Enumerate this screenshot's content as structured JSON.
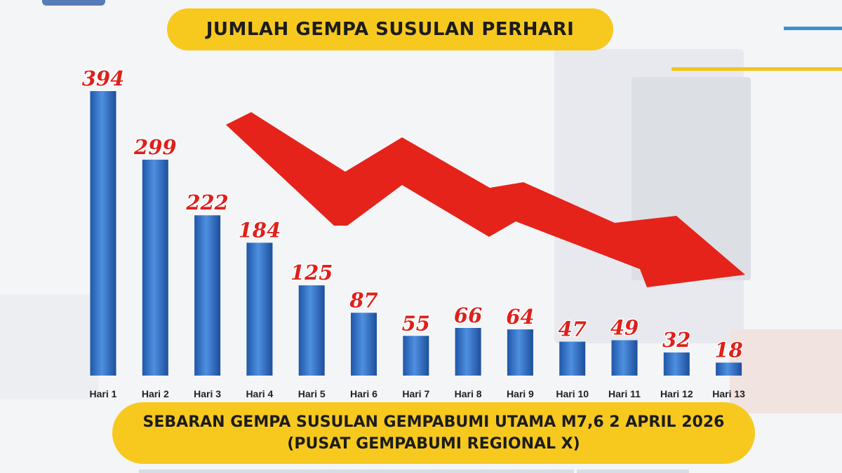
{
  "header": {
    "title": "JUMLAH GEMPA SUSULAN PERHARI"
  },
  "footer": {
    "line1": "SEBARAN GEMPA SUSULAN GEMPABUMI UTAMA M7,6 2 APRIL 2026",
    "line2": "(PUSAT GEMPABUMI REGIONAL X)"
  },
  "colors": {
    "bar": "#2f6fc4",
    "bar_light": "#6ea3e6",
    "value_label": "#e0201b",
    "arrow": "#e5231b",
    "pill": "#f7c91f"
  },
  "chart_data": {
    "type": "bar",
    "title": "JUMLAH GEMPA SUSULAN PERHARI",
    "categories": [
      "Hari 1",
      "Hari 2",
      "Hari 3",
      "Hari 4",
      "Hari 5",
      "Hari 6",
      "Hari 7",
      "Hari 8",
      "Hari 9",
      "Hari 10",
      "Hari 11",
      "Hari 12",
      "Hari 13"
    ],
    "values": [
      394,
      299,
      222,
      184,
      125,
      87,
      55,
      66,
      64,
      47,
      49,
      32,
      18
    ],
    "xlabel": "",
    "ylabel": "",
    "ylim": [
      0,
      394
    ],
    "grid": false,
    "data_labels": true,
    "decoration": "downward-trend-arrow"
  }
}
